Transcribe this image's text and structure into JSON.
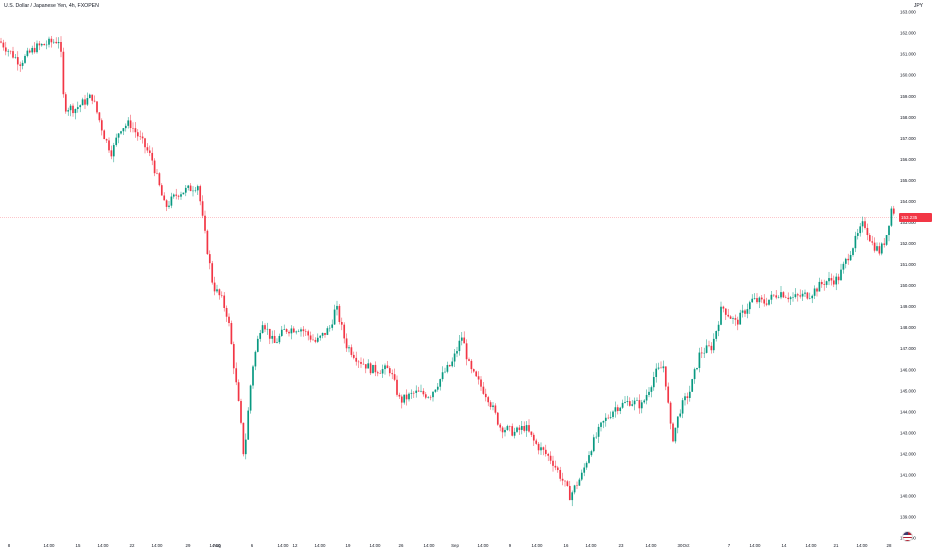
{
  "legend": "U.S. Dollar / Japanese Yen, 4h, FXOPEN",
  "currency_label": "JPY",
  "last_price_tag": "153.235",
  "colors": {
    "up": "#089981",
    "down": "#f23645",
    "axis_text": "#131722",
    "last_line": "#f23645"
  },
  "flag_icon": "us-flag-icon",
  "chart_data": {
    "type": "candlestick",
    "title": "U.S. Dollar / Japanese Yen, 4h, FXOPEN",
    "ylabel": "JPY",
    "ylim": [
      138.0,
      163.0
    ],
    "y_ticks": [
      "163.000",
      "162.000",
      "161.000",
      "160.000",
      "159.000",
      "158.000",
      "157.000",
      "156.000",
      "155.000",
      "154.000",
      "153.000",
      "152.000",
      "151.000",
      "150.000",
      "149.000",
      "148.000",
      "147.000",
      "146.000",
      "145.000",
      "144.000",
      "143.000",
      "142.000",
      "141.000",
      "140.000",
      "139.000",
      "138.000"
    ],
    "x_ticks": [
      "8",
      "14:00",
      "15",
      "14:00",
      "22",
      "14:00",
      "29",
      "14:00",
      "Aug",
      "6",
      "14:00",
      "12",
      "14:00",
      "19",
      "14:00",
      "26",
      "14:00",
      "Sep",
      "14:00",
      "9",
      "14:00",
      "16",
      "14:00",
      "23",
      "14:00",
      "30",
      "Oct",
      "7",
      "14:00",
      "14",
      "14:00",
      "21",
      "14:00",
      "28"
    ],
    "last_price": 153.235,
    "path_waypoints": [
      [
        0,
        161.6
      ],
      [
        8,
        161.2
      ],
      [
        20,
        160.6
      ],
      [
        35,
        161.3
      ],
      [
        60,
        161.7
      ],
      [
        64,
        158.5
      ],
      [
        75,
        158.4
      ],
      [
        92,
        159.0
      ],
      [
        105,
        157.0
      ],
      [
        112,
        156.3
      ],
      [
        120,
        157.5
      ],
      [
        130,
        157.7
      ],
      [
        145,
        156.6
      ],
      [
        152,
        156.0
      ],
      [
        165,
        153.7
      ],
      [
        178,
        154.4
      ],
      [
        190,
        154.6
      ],
      [
        198,
        154.8
      ],
      [
        203,
        153.0
      ],
      [
        213,
        150.0
      ],
      [
        222,
        149.3
      ],
      [
        228,
        148.5
      ],
      [
        240,
        143.8
      ],
      [
        244,
        141.8
      ],
      [
        252,
        146.0
      ],
      [
        262,
        148.4
      ],
      [
        274,
        147.2
      ],
      [
        285,
        147.9
      ],
      [
        300,
        148.0
      ],
      [
        316,
        147.3
      ],
      [
        330,
        148.0
      ],
      [
        336,
        149.0
      ],
      [
        346,
        147.2
      ],
      [
        358,
        146.5
      ],
      [
        372,
        146.0
      ],
      [
        390,
        146.0
      ],
      [
        400,
        144.5
      ],
      [
        415,
        144.9
      ],
      [
        430,
        144.8
      ],
      [
        445,
        145.9
      ],
      [
        452,
        146.3
      ],
      [
        462,
        147.6
      ],
      [
        470,
        146.0
      ],
      [
        488,
        144.7
      ],
      [
        500,
        143.3
      ],
      [
        515,
        143.0
      ],
      [
        525,
        143.3
      ],
      [
        535,
        142.5
      ],
      [
        552,
        141.7
      ],
      [
        562,
        140.8
      ],
      [
        570,
        140.0
      ],
      [
        582,
        141.0
      ],
      [
        590,
        142.2
      ],
      [
        602,
        143.4
      ],
      [
        615,
        144.2
      ],
      [
        630,
        144.5
      ],
      [
        642,
        144.3
      ],
      [
        655,
        145.8
      ],
      [
        664,
        146.2
      ],
      [
        672,
        142.6
      ],
      [
        680,
        144.1
      ],
      [
        690,
        145.0
      ],
      [
        700,
        146.8
      ],
      [
        712,
        147.1
      ],
      [
        722,
        149.0
      ],
      [
        736,
        148.2
      ],
      [
        752,
        149.3
      ],
      [
        765,
        149.2
      ],
      [
        780,
        149.7
      ],
      [
        792,
        149.4
      ],
      [
        810,
        149.6
      ],
      [
        825,
        150.2
      ],
      [
        838,
        150.3
      ],
      [
        848,
        151.4
      ],
      [
        856,
        152.2
      ],
      [
        864,
        153.0
      ],
      [
        872,
        152.0
      ],
      [
        880,
        151.6
      ],
      [
        886,
        152.3
      ],
      [
        892,
        153.8
      ],
      [
        896,
        153.2
      ]
    ]
  }
}
